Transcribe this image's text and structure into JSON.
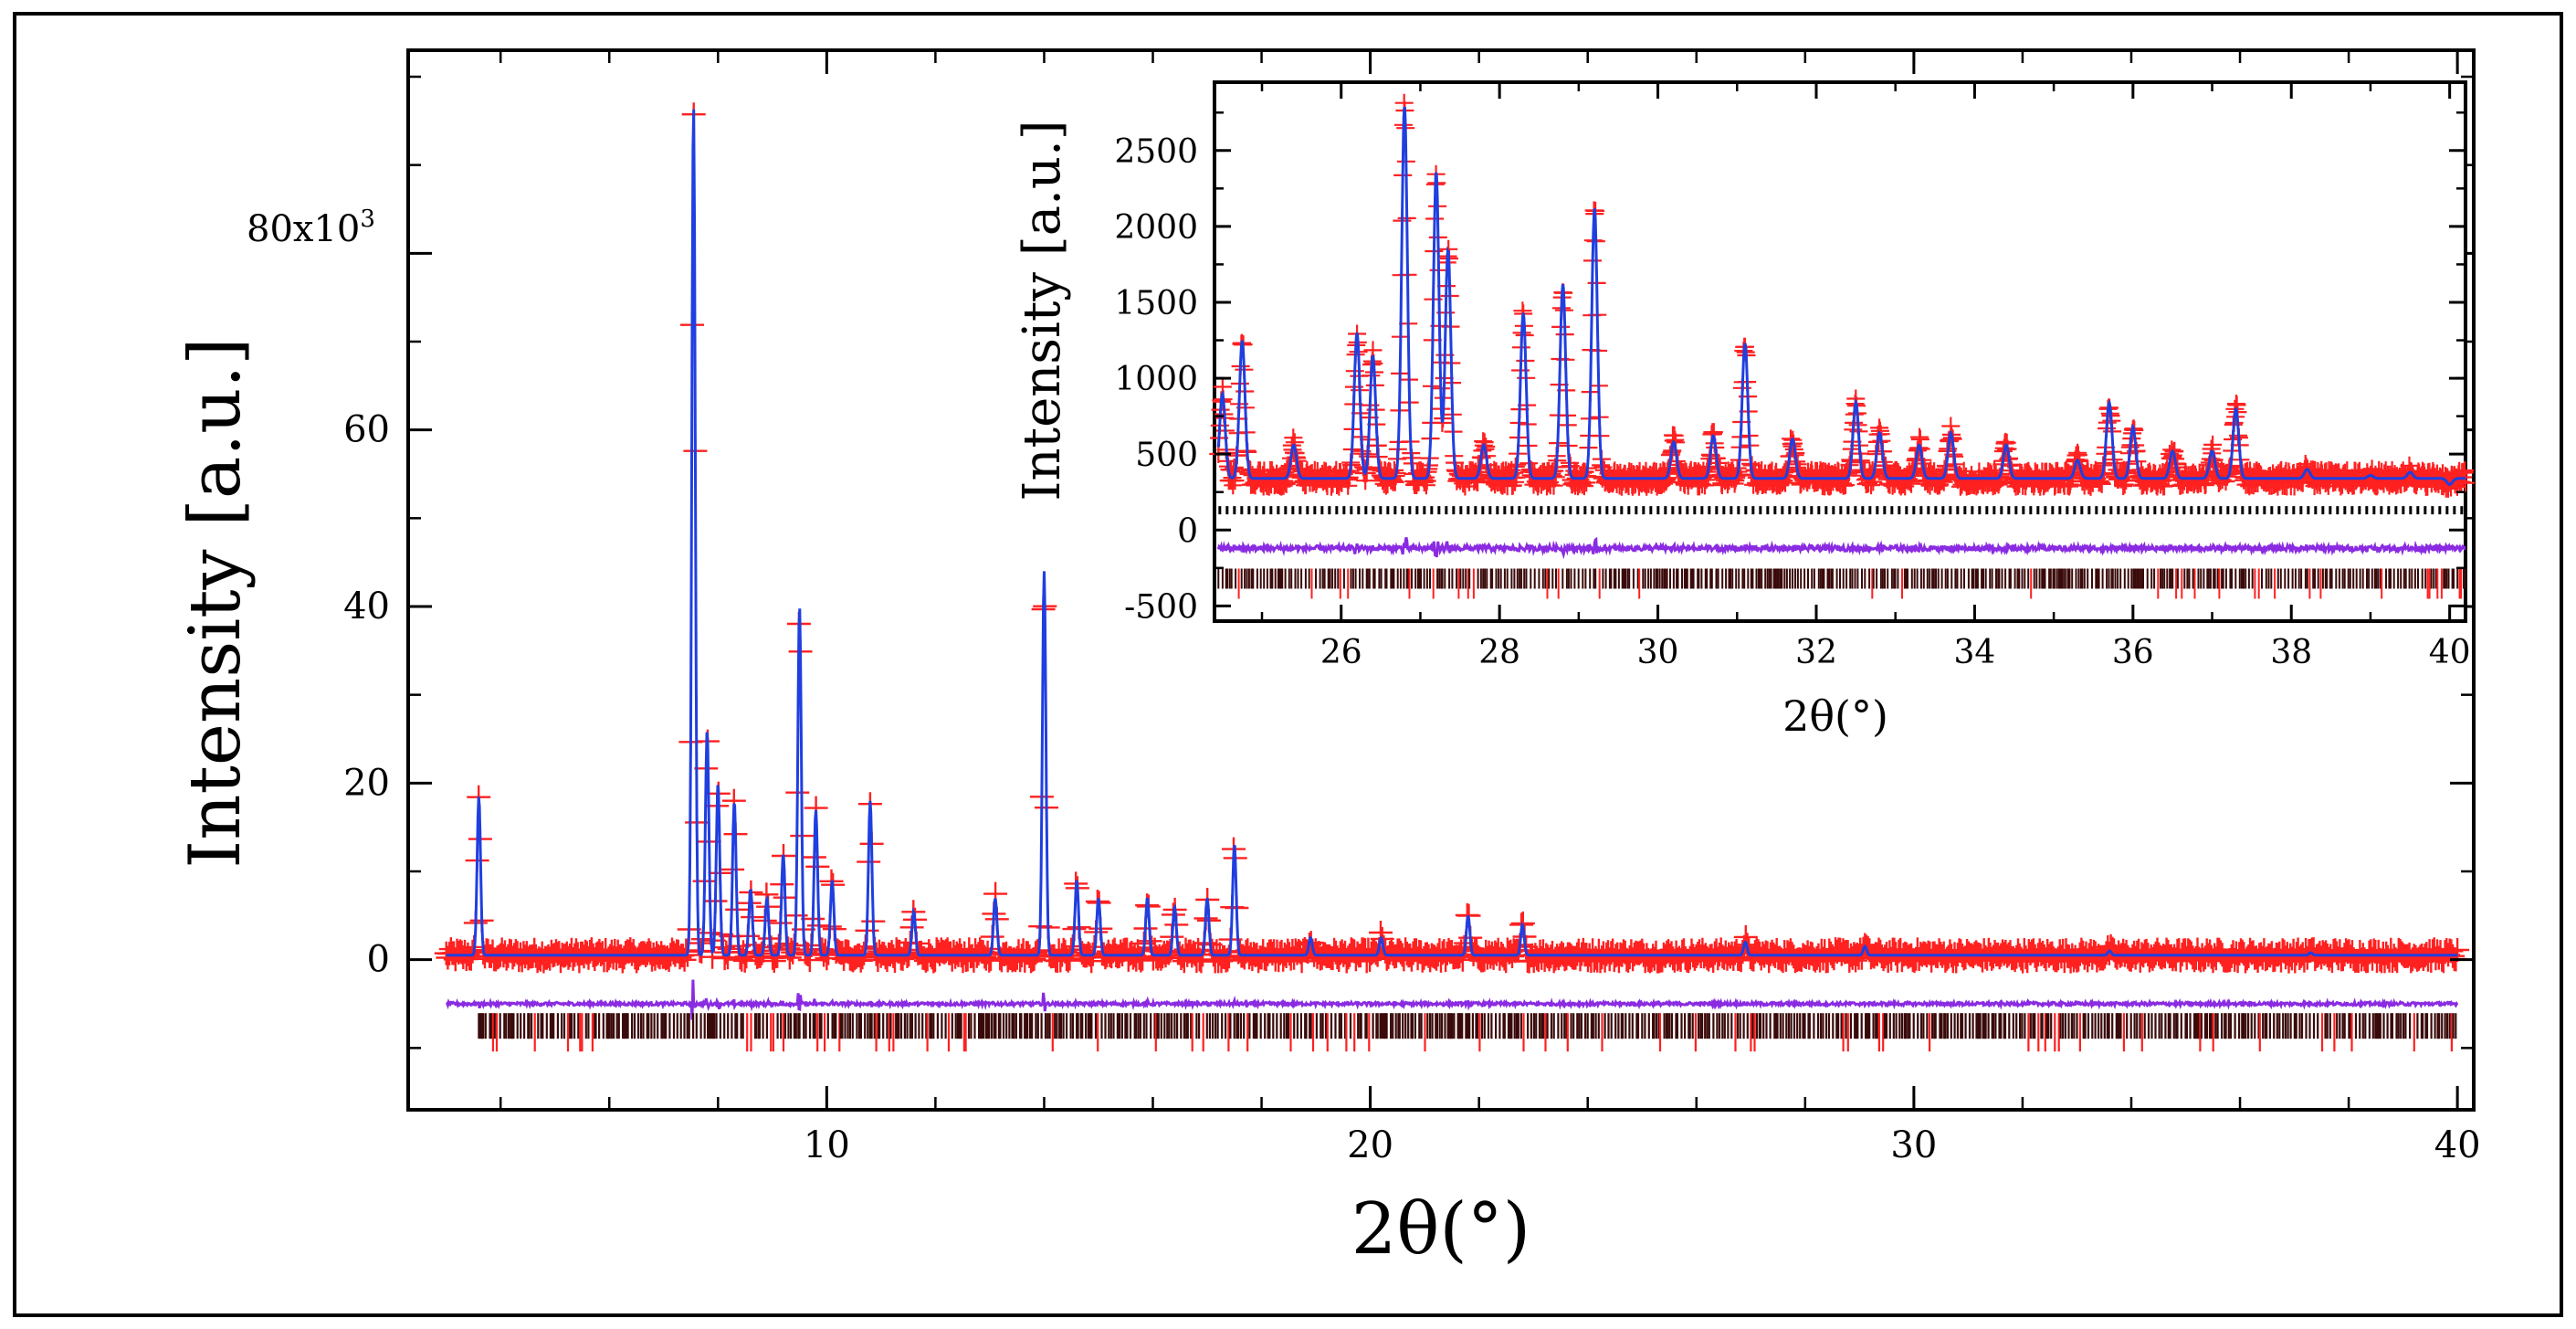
{
  "chart_data": [
    {
      "id": "main",
      "type": "line",
      "title": "",
      "xlabel": "2θ(°)",
      "ylabel": "Intensity [a.u.]",
      "xlim": [
        2.3,
        40.3
      ],
      "ylim": [
        -17,
        103
      ],
      "y_multiplier_label": "80x10",
      "y_multiplier_exp": "3",
      "x_ticks": [
        10,
        20,
        30,
        40
      ],
      "x_tick_labels": [
        "10",
        "20",
        "30",
        "40"
      ],
      "y_ticks": [
        0,
        20,
        40,
        60,
        80
      ],
      "y_tick_labels": [
        "0",
        "20",
        "40",
        "60",
        ""
      ],
      "colors": {
        "observed": "#ff2020",
        "calculated": "#1f3fe0",
        "difference": "#8a2be2",
        "reflections": "#3a0a0a"
      },
      "series": [
        {
          "name": "observed",
          "style": "red plus markers"
        },
        {
          "name": "calculated",
          "style": "blue line"
        },
        {
          "name": "difference",
          "style": "purple line",
          "offset": -5
        },
        {
          "name": "reflections",
          "style": "dark tick marks",
          "offset": -7.5
        }
      ],
      "background_level": 0.5,
      "difference_offset": -5,
      "reflection_level": -7.5,
      "reflection_range": [
        3.6,
        40
      ],
      "peaks": [
        {
          "x": 3.6,
          "y": 18.5
        },
        {
          "x": 7.55,
          "y": 97
        },
        {
          "x": 7.8,
          "y": 26
        },
        {
          "x": 8.0,
          "y": 20
        },
        {
          "x": 8.3,
          "y": 18
        },
        {
          "x": 8.6,
          "y": 8
        },
        {
          "x": 8.9,
          "y": 7
        },
        {
          "x": 9.2,
          "y": 12
        },
        {
          "x": 9.5,
          "y": 40
        },
        {
          "x": 9.8,
          "y": 17
        },
        {
          "x": 10.1,
          "y": 9
        },
        {
          "x": 10.8,
          "y": 18
        },
        {
          "x": 11.6,
          "y": 5.5
        },
        {
          "x": 13.1,
          "y": 7
        },
        {
          "x": 14.0,
          "y": 44
        },
        {
          "x": 14.6,
          "y": 9
        },
        {
          "x": 15.0,
          "y": 7
        },
        {
          "x": 15.9,
          "y": 7
        },
        {
          "x": 16.4,
          "y": 6
        },
        {
          "x": 17.0,
          "y": 7
        },
        {
          "x": 17.5,
          "y": 13
        },
        {
          "x": 18.9,
          "y": 2.5
        },
        {
          "x": 20.2,
          "y": 2.5
        },
        {
          "x": 21.8,
          "y": 5
        },
        {
          "x": 22.8,
          "y": 4
        },
        {
          "x": 26.9,
          "y": 2
        },
        {
          "x": 29.1,
          "y": 1.5
        },
        {
          "x": 33.6,
          "y": 1
        },
        {
          "x": 37.3,
          "y": 0.8
        }
      ]
    },
    {
      "id": "inset",
      "type": "line",
      "title": "",
      "xlabel": "2θ(°)",
      "ylabel": "Intensity [a.u.]",
      "xlim": [
        24.4,
        40.2
      ],
      "ylim": [
        -600,
        2950
      ],
      "x_ticks": [
        26,
        28,
        30,
        32,
        34,
        36,
        38,
        40
      ],
      "x_tick_labels": [
        "26",
        "28",
        "30",
        "32",
        "34",
        "36",
        "38",
        "40"
      ],
      "y_ticks": [
        -500,
        0,
        500,
        1000,
        1500,
        2000,
        2500
      ],
      "y_tick_labels": [
        "-500",
        "0",
        "500",
        "1000",
        "1500",
        "2000",
        "2500"
      ],
      "series": [
        {
          "name": "observed",
          "style": "red plus markers"
        },
        {
          "name": "calculated",
          "style": "blue line"
        },
        {
          "name": "phase reflections",
          "style": "black dotted line",
          "offset": 130
        },
        {
          "name": "difference",
          "style": "purple line",
          "offset": -120
        },
        {
          "name": "reflections",
          "style": "dark tick marks",
          "offset": -320
        }
      ],
      "background_level": 340,
      "phase_offset": 130,
      "difference_offset": -120,
      "reflection_level": -320,
      "peaks": [
        {
          "x": 24.5,
          "y": 900
        },
        {
          "x": 24.75,
          "y": 1250
        },
        {
          "x": 25.4,
          "y": 560
        },
        {
          "x": 26.2,
          "y": 1300
        },
        {
          "x": 26.4,
          "y": 1150
        },
        {
          "x": 26.8,
          "y": 2800
        },
        {
          "x": 27.2,
          "y": 2360
        },
        {
          "x": 27.35,
          "y": 1850
        },
        {
          "x": 27.8,
          "y": 560
        },
        {
          "x": 28.3,
          "y": 1430
        },
        {
          "x": 28.8,
          "y": 1620
        },
        {
          "x": 29.2,
          "y": 2120
        },
        {
          "x": 30.2,
          "y": 580
        },
        {
          "x": 30.7,
          "y": 620
        },
        {
          "x": 31.1,
          "y": 1230
        },
        {
          "x": 31.7,
          "y": 600
        },
        {
          "x": 32.5,
          "y": 840
        },
        {
          "x": 32.8,
          "y": 640
        },
        {
          "x": 33.3,
          "y": 560
        },
        {
          "x": 33.7,
          "y": 640
        },
        {
          "x": 34.4,
          "y": 560
        },
        {
          "x": 35.3,
          "y": 460
        },
        {
          "x": 35.7,
          "y": 840
        },
        {
          "x": 36.0,
          "y": 680
        },
        {
          "x": 36.5,
          "y": 520
        },
        {
          "x": 37.0,
          "y": 520
        },
        {
          "x": 37.3,
          "y": 800
        },
        {
          "x": 38.2,
          "y": 400
        },
        {
          "x": 39.0,
          "y": 360
        },
        {
          "x": 39.5,
          "y": 380
        },
        {
          "x": 40.0,
          "y": 300
        }
      ]
    }
  ]
}
